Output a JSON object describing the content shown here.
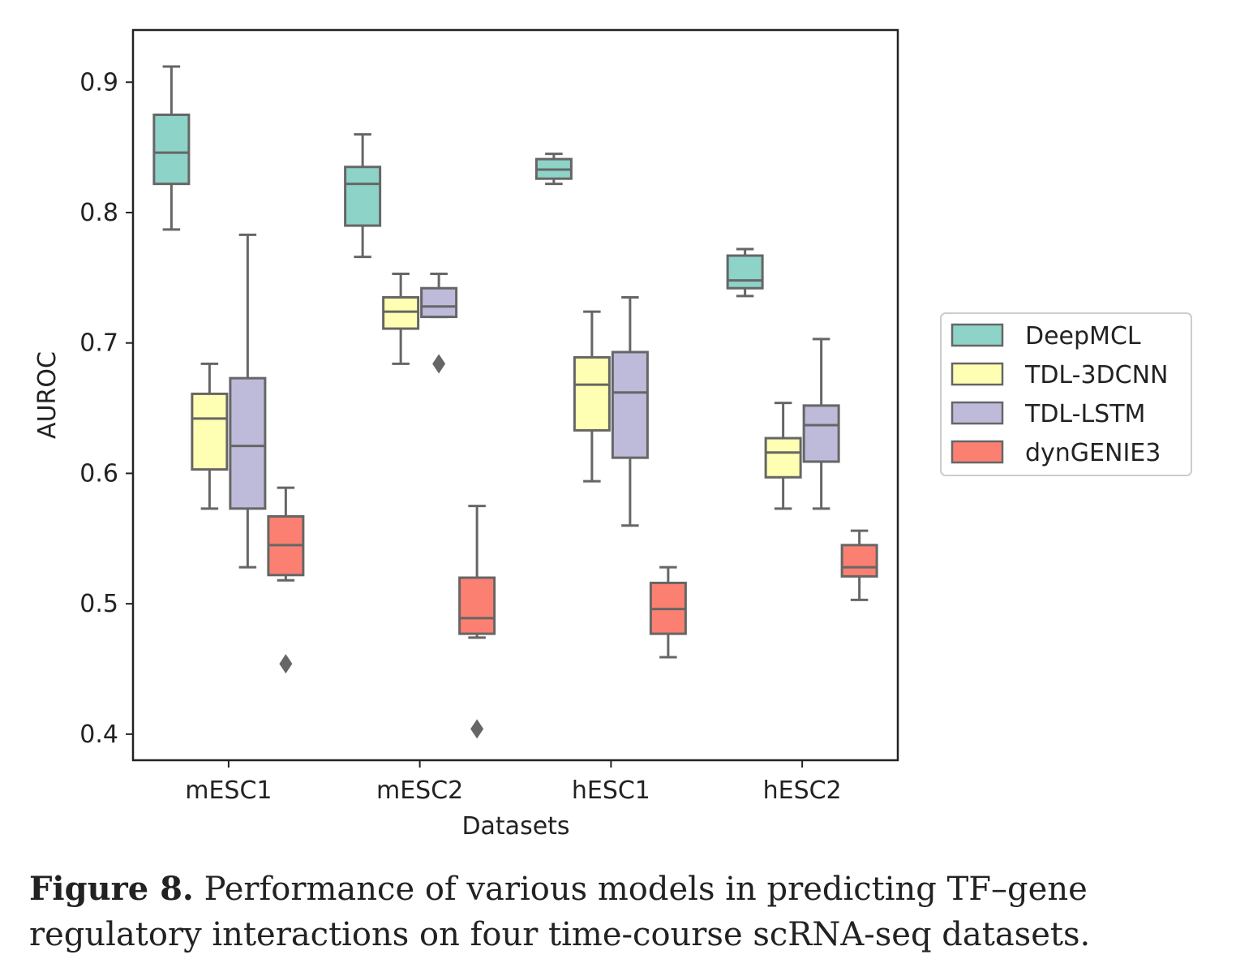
{
  "chart_data": {
    "type": "box",
    "xlabel": "Datasets",
    "ylabel": "AUROC",
    "ylim": [
      0.38,
      0.94
    ],
    "yticks": [
      0.4,
      0.5,
      0.6,
      0.7,
      0.8,
      0.9
    ],
    "ytick_labels": [
      "0.4",
      "0.5",
      "0.6",
      "0.7",
      "0.8",
      "0.9"
    ],
    "categories": [
      "mESC1",
      "mESC2",
      "hESC1",
      "hESC2"
    ],
    "legend_position": "right",
    "series": [
      {
        "name": "DeepMCL",
        "color": "#8dd3c7",
        "boxes": [
          {
            "whislo": 0.787,
            "q1": 0.822,
            "med": 0.846,
            "q3": 0.875,
            "whishi": 0.912,
            "fliers": []
          },
          {
            "whislo": 0.766,
            "q1": 0.79,
            "med": 0.822,
            "q3": 0.835,
            "whishi": 0.86,
            "fliers": []
          },
          {
            "whislo": 0.822,
            "q1": 0.826,
            "med": 0.833,
            "q3": 0.841,
            "whishi": 0.845,
            "fliers": []
          },
          {
            "whislo": 0.736,
            "q1": 0.742,
            "med": 0.748,
            "q3": 0.767,
            "whishi": 0.772,
            "fliers": []
          }
        ]
      },
      {
        "name": "TDL-3DCNN",
        "color": "#ffffb3",
        "boxes": [
          {
            "whislo": 0.573,
            "q1": 0.603,
            "med": 0.642,
            "q3": 0.661,
            "whishi": 0.684,
            "fliers": []
          },
          {
            "whislo": 0.684,
            "q1": 0.711,
            "med": 0.724,
            "q3": 0.735,
            "whishi": 0.753,
            "fliers": []
          },
          {
            "whislo": 0.594,
            "q1": 0.633,
            "med": 0.668,
            "q3": 0.689,
            "whishi": 0.724,
            "fliers": []
          },
          {
            "whislo": 0.573,
            "q1": 0.597,
            "med": 0.616,
            "q3": 0.627,
            "whishi": 0.654,
            "fliers": []
          }
        ]
      },
      {
        "name": "TDL-LSTM",
        "color": "#bebada",
        "boxes": [
          {
            "whislo": 0.528,
            "q1": 0.573,
            "med": 0.621,
            "q3": 0.673,
            "whishi": 0.783,
            "fliers": []
          },
          {
            "whislo": 0.72,
            "q1": 0.72,
            "med": 0.728,
            "q3": 0.742,
            "whishi": 0.753,
            "fliers": [
              0.684
            ]
          },
          {
            "whislo": 0.56,
            "q1": 0.612,
            "med": 0.662,
            "q3": 0.693,
            "whishi": 0.735,
            "fliers": []
          },
          {
            "whislo": 0.573,
            "q1": 0.609,
            "med": 0.637,
            "q3": 0.652,
            "whishi": 0.703,
            "fliers": []
          }
        ]
      },
      {
        "name": "dynGENIE3",
        "color": "#fb8072",
        "boxes": [
          {
            "whislo": 0.518,
            "q1": 0.522,
            "med": 0.545,
            "q3": 0.567,
            "whishi": 0.589,
            "fliers": [
              0.454
            ]
          },
          {
            "whislo": 0.474,
            "q1": 0.477,
            "med": 0.489,
            "q3": 0.52,
            "whishi": 0.575,
            "fliers": [
              0.404
            ]
          },
          {
            "whislo": 0.459,
            "q1": 0.477,
            "med": 0.496,
            "q3": 0.516,
            "whishi": 0.528,
            "fliers": []
          },
          {
            "whislo": 0.503,
            "q1": 0.521,
            "med": 0.528,
            "q3": 0.545,
            "whishi": 0.556,
            "fliers": []
          }
        ]
      }
    ]
  },
  "caption": {
    "label": "Figure 8.",
    "text": "Performance of various models in predicting TF–gene regulatory interactions on four time-course scRNA-seq datasets."
  }
}
